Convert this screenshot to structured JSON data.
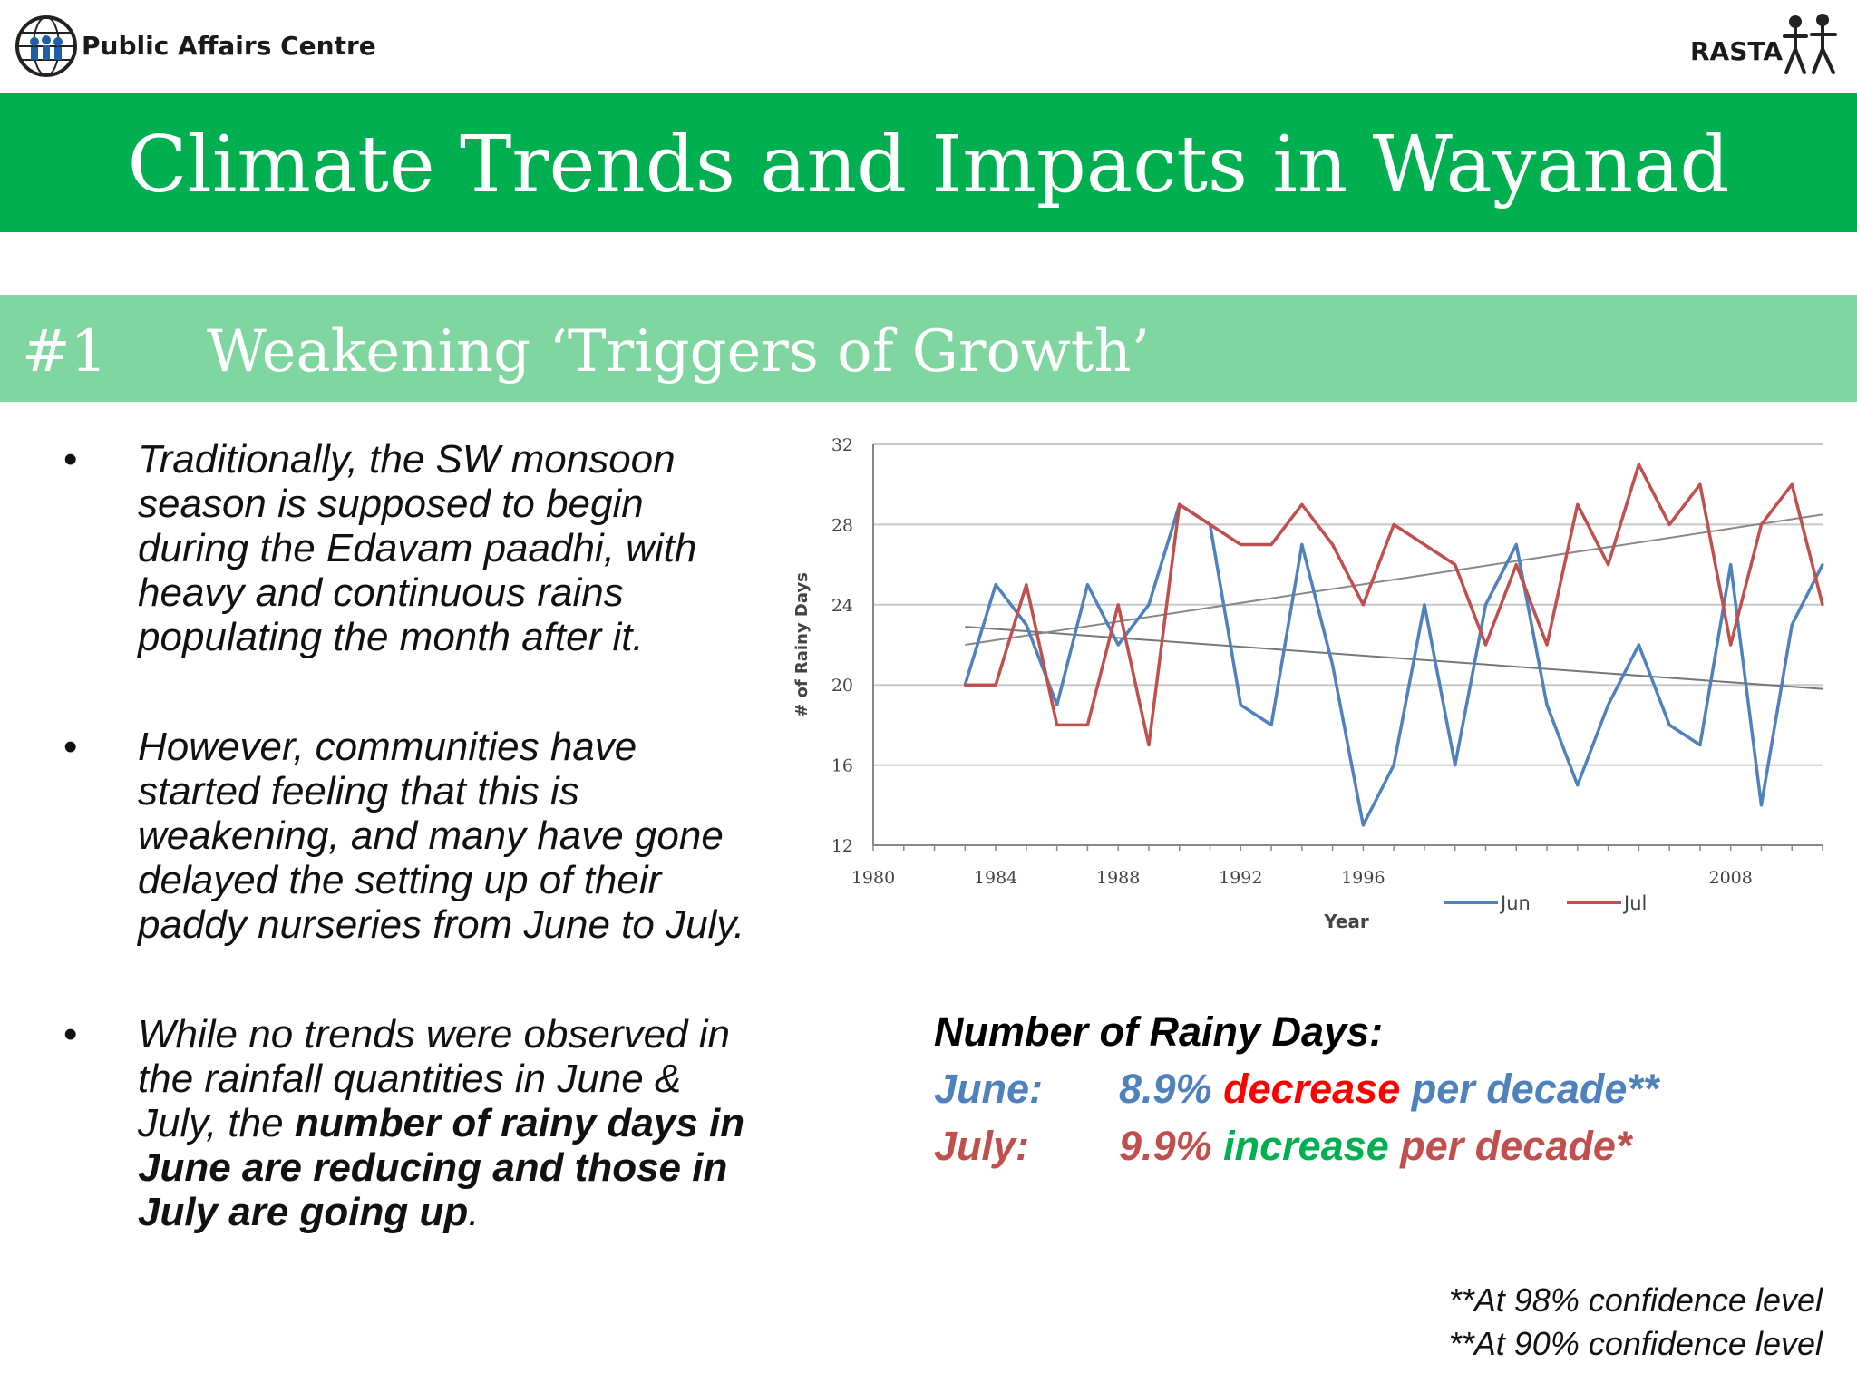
{
  "header": {
    "org_left": "Public Affairs Centre",
    "org_right": "RASTA",
    "logo_left_icon": "globe-people-logo-icon",
    "logo_right_icon": "people-figures-logo-icon"
  },
  "title": "Climate Trends and Impacts in Wayanad",
  "section": {
    "number": "#1",
    "heading": "Weakening ‘Triggers of Growth’"
  },
  "bullets": [
    {
      "text": "Traditionally, the SW monsoon season is supposed to begin during the Edavam paadhi, with heavy and continuous rains populating the month after it."
    },
    {
      "text": "However, communities have started feeling that this is weakening, and many have gone delayed the setting up of their paddy nurseries from June to July."
    },
    {
      "text_plain": "While no trends were observed in the rainfall quantities in June & July, the ",
      "text_bold": "number of rainy days in June are reducing and those in July are going up",
      "text_end": "."
    }
  ],
  "summary": {
    "heading": "Number of Rainy Days:",
    "june": {
      "label": "June:",
      "pct": "8.9%",
      "direction": "decrease",
      "rest": "per decade**"
    },
    "july": {
      "label": "July:",
      "pct": "9.9%",
      "direction": "increase",
      "rest": "per decade*"
    }
  },
  "notes": [
    "**At 98% confidence level",
    "**At 90% confidence level"
  ],
  "colors": {
    "green_bar": "#00b050",
    "sub_bar": "#7fd6a1",
    "june": "#4f81bd",
    "july": "#c0504d",
    "decrease": "#ff0000",
    "increase": "#00b050"
  },
  "chart_data": {
    "type": "line",
    "xlabel": "Year",
    "ylabel": "# of Rainy Days",
    "xlim": [
      1980,
      2011
    ],
    "ylim": [
      12,
      32
    ],
    "x_ticks": [
      "1980",
      "1984",
      "1988",
      "1992",
      "1996",
      "",
      "",
      "2008"
    ],
    "x_tick_values": [
      1980,
      1984,
      1988,
      1992,
      1996,
      2000,
      2004,
      2008
    ],
    "y_ticks": [
      12,
      16,
      20,
      24,
      28,
      32
    ],
    "grid": true,
    "legend_position": "bottom-right",
    "x": [
      1983,
      1984,
      1985,
      1986,
      1987,
      1988,
      1989,
      1990,
      1991,
      1992,
      1993,
      1994,
      1995,
      1996,
      1997,
      1998,
      1999,
      2000,
      2001,
      2002,
      2003,
      2004,
      2005,
      2006,
      2007,
      2008,
      2009,
      2010,
      2011
    ],
    "series": [
      {
        "name": "Jun",
        "color": "#4f81bd",
        "values": [
          20,
          25,
          23,
          19,
          25,
          22,
          24,
          29,
          28,
          19,
          18,
          27,
          21,
          13,
          16,
          24,
          16,
          24,
          27,
          19,
          15,
          19,
          22,
          18,
          17,
          26,
          14,
          23,
          26
        ]
      },
      {
        "name": "Jul",
        "color": "#c0504d",
        "values": [
          20,
          20,
          25,
          18,
          18,
          24,
          17,
          29,
          28,
          27,
          27,
          29,
          27,
          24,
          28,
          27,
          26,
          22,
          26,
          22,
          29,
          26,
          31,
          28,
          30,
          22,
          28,
          30,
          24
        ]
      }
    ],
    "trendlines": [
      {
        "series": "Jun",
        "start": [
          1983,
          22.9
        ],
        "end": [
          2011,
          19.8
        ],
        "color": "#777777"
      },
      {
        "series": "Jul",
        "start": [
          1983,
          22.0
        ],
        "end": [
          2011,
          28.5
        ],
        "color": "#888888"
      }
    ]
  }
}
